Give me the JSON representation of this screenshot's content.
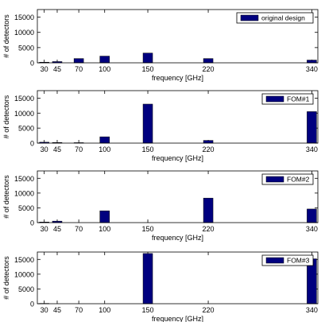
{
  "chart_data": [
    {
      "type": "bar",
      "categories": [
        "30",
        "45",
        "70",
        "100",
        "150",
        "220",
        "340"
      ],
      "x": [
        30,
        45,
        70,
        100,
        150,
        220,
        340
      ],
      "series": [
        {
          "name": "original design",
          "values": [
            200,
            400,
            1400,
            2200,
            3200,
            1400,
            900
          ]
        }
      ],
      "xlabel": "frequency [GHz]",
      "ylabel": "# of detectors",
      "ylim": [
        0,
        17500
      ],
      "yticks": [
        0,
        5000,
        10000,
        15000
      ],
      "legend": "top-right",
      "bar_color": "#00007f"
    },
    {
      "type": "bar",
      "categories": [
        "30",
        "45",
        "70",
        "100",
        "150",
        "220",
        "340"
      ],
      "x": [
        30,
        45,
        70,
        100,
        150,
        220,
        340
      ],
      "series": [
        {
          "name": "FOM#1",
          "values": [
            300,
            200,
            150,
            2100,
            13000,
            900,
            10500
          ]
        }
      ],
      "xlabel": "frequency [GHz]",
      "ylabel": "# of detectors",
      "ylim": [
        0,
        17500
      ],
      "yticks": [
        0,
        5000,
        10000,
        15000
      ],
      "legend": "top-right",
      "bar_color": "#00007f"
    },
    {
      "type": "bar",
      "categories": [
        "30",
        "45",
        "70",
        "100",
        "150",
        "220",
        "340"
      ],
      "x": [
        30,
        45,
        70,
        100,
        150,
        220,
        340
      ],
      "series": [
        {
          "name": "FOM#2",
          "values": [
            200,
            500,
            0,
            4000,
            0,
            8300,
            4600
          ]
        }
      ],
      "xlabel": "frequency [GHz]",
      "ylabel": "# of detectors",
      "ylim": [
        0,
        17500
      ],
      "yticks": [
        0,
        5000,
        10000,
        15000
      ],
      "legend": "top-right",
      "bar_color": "#00007f"
    },
    {
      "type": "bar",
      "categories": [
        "30",
        "45",
        "70",
        "100",
        "150",
        "220",
        "340"
      ],
      "x": [
        30,
        45,
        70,
        100,
        150,
        220,
        340
      ],
      "series": [
        {
          "name": "FOM#3",
          "values": [
            100,
            0,
            0,
            0,
            17000,
            0,
            15200
          ]
        }
      ],
      "xlabel": "frequency [GHz]",
      "ylabel": "# of detectors",
      "ylim": [
        0,
        17500
      ],
      "yticks": [
        0,
        5000,
        10000,
        15000
      ],
      "legend": "top-right",
      "bar_color": "#00007f"
    }
  ]
}
